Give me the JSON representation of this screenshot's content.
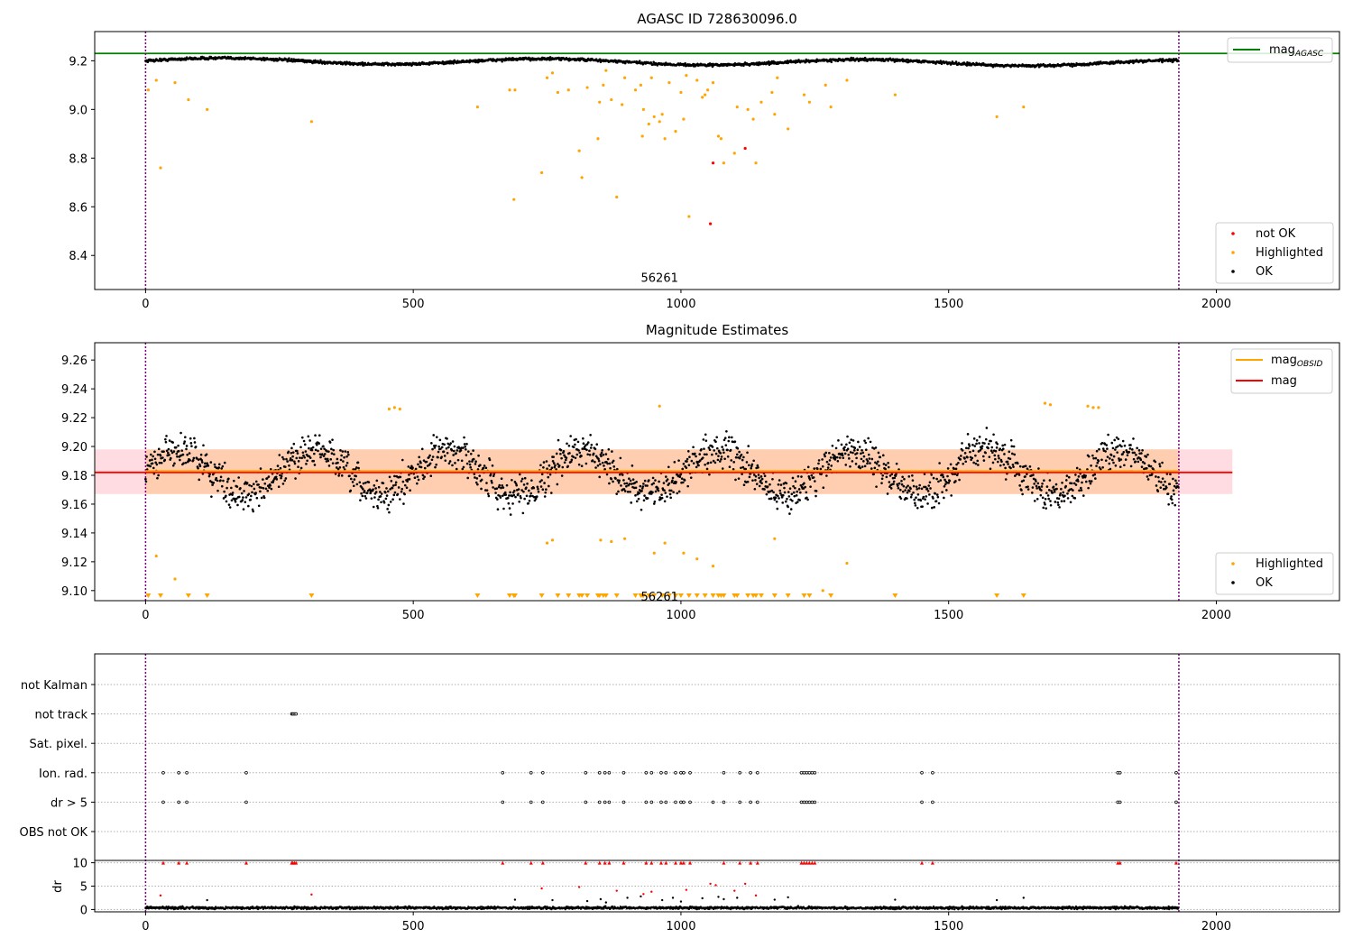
{
  "chart_data": [
    {
      "type": "scatter",
      "title": "AGASC ID 728630096.0",
      "xlim": [
        -95,
        2230
      ],
      "ylim": [
        8.26,
        9.32
      ],
      "xticks": [
        "0",
        "500",
        "1000",
        "1500",
        "2000"
      ],
      "yticks": [
        "8.4",
        "8.6",
        "8.8",
        "9.0",
        "9.2"
      ],
      "mag_agasc": 9.23,
      "vlines": [
        0,
        1930
      ],
      "annotation": {
        "text": "56261",
        "x": 960,
        "y": 8.31
      },
      "baseline": {
        "start": 9.2,
        "end": 9.19,
        "amplitude": 0.012,
        "noise": 0.009,
        "n": 1930
      },
      "legends": {
        "line": [
          {
            "label_main": "mag",
            "label_sub": "AGASC",
            "color": "#008000"
          }
        ],
        "markers": [
          {
            "label": "not OK",
            "color": "#ff0000"
          },
          {
            "label": "Highlighted",
            "color": "#ffa500"
          },
          {
            "label": "OK",
            "color": "#000000"
          }
        ]
      },
      "series": [
        {
          "name": "Highlighted",
          "color": "#ffa500",
          "points": [
            [
              5,
              9.08
            ],
            [
              20,
              9.12
            ],
            [
              28,
              8.76
            ],
            [
              55,
              9.11
            ],
            [
              80,
              9.04
            ],
            [
              115,
              9.0
            ],
            [
              310,
              8.95
            ],
            [
              620,
              9.01
            ],
            [
              680,
              9.08
            ],
            [
              688,
              8.63
            ],
            [
              690,
              9.08
            ],
            [
              740,
              8.74
            ],
            [
              750,
              9.13
            ],
            [
              760,
              9.15
            ],
            [
              770,
              9.07
            ],
            [
              790,
              9.08
            ],
            [
              810,
              8.83
            ],
            [
              815,
              8.72
            ],
            [
              825,
              9.09
            ],
            [
              845,
              8.88
            ],
            [
              848,
              9.03
            ],
            [
              855,
              9.1
            ],
            [
              860,
              9.16
            ],
            [
              870,
              9.04
            ],
            [
              880,
              8.64
            ],
            [
              890,
              9.02
            ],
            [
              895,
              9.13
            ],
            [
              915,
              9.08
            ],
            [
              925,
              9.1
            ],
            [
              928,
              8.89
            ],
            [
              930,
              9.0
            ],
            [
              940,
              8.94
            ],
            [
              945,
              9.13
            ],
            [
              950,
              8.97
            ],
            [
              960,
              8.95
            ],
            [
              965,
              8.98
            ],
            [
              970,
              8.88
            ],
            [
              978,
              9.11
            ],
            [
              990,
              8.91
            ],
            [
              1000,
              9.07
            ],
            [
              1005,
              8.96
            ],
            [
              1010,
              9.14
            ],
            [
              1015,
              8.56
            ],
            [
              1030,
              9.12
            ],
            [
              1040,
              9.05
            ],
            [
              1045,
              9.06
            ],
            [
              1050,
              9.08
            ],
            [
              1060,
              9.11
            ],
            [
              1070,
              8.89
            ],
            [
              1075,
              8.88
            ],
            [
              1080,
              8.78
            ],
            [
              1100,
              8.82
            ],
            [
              1105,
              9.01
            ],
            [
              1125,
              9.0
            ],
            [
              1135,
              8.96
            ],
            [
              1140,
              8.78
            ],
            [
              1150,
              9.03
            ],
            [
              1170,
              9.07
            ],
            [
              1175,
              8.98
            ],
            [
              1180,
              9.13
            ],
            [
              1200,
              8.92
            ],
            [
              1230,
              9.06
            ],
            [
              1240,
              9.03
            ],
            [
              1270,
              9.1
            ],
            [
              1280,
              9.01
            ],
            [
              1310,
              9.12
            ],
            [
              1400,
              9.06
            ],
            [
              1590,
              8.97
            ],
            [
              1640,
              9.01
            ]
          ]
        },
        {
          "name": "not OK",
          "color": "#ff0000",
          "points": [
            [
              1060,
              8.78
            ],
            [
              1055,
              8.53
            ],
            [
              1120,
              8.84
            ]
          ]
        }
      ]
    },
    {
      "type": "scatter",
      "title": "Magnitude Estimates",
      "xlim": [
        -95,
        2230
      ],
      "ylim": [
        9.093,
        9.272
      ],
      "xticks": [
        "0",
        "500",
        "1000",
        "1500",
        "2000"
      ],
      "yticks": [
        "9.10",
        "9.12",
        "9.14",
        "9.16",
        "9.18",
        "9.20",
        "9.22",
        "9.24",
        "9.26"
      ],
      "mag": 9.182,
      "mag_band": [
        9.167,
        9.198
      ],
      "mag_band_xrange": [
        -95,
        2030
      ],
      "mag_obsid": 9.183,
      "mag_obsid_band_xrange": [
        0,
        1930
      ],
      "vlines": [
        0,
        1930
      ],
      "annotation": {
        "text": "56261",
        "x": 960,
        "y": 9.096
      },
      "baseline": {
        "mean": 9.182,
        "amplitude": 0.017,
        "noise": 0.012,
        "n": 1930
      },
      "legends": {
        "line": [
          {
            "label_main": "mag",
            "label_sub": "OBSID",
            "color": "#ffa500"
          },
          {
            "label_main": "mag",
            "label_sub": "",
            "color": "#ff0000"
          }
        ],
        "markers": [
          {
            "label": "Highlighted",
            "color": "#ffa500"
          },
          {
            "label": "OK",
            "color": "#000000"
          }
        ]
      },
      "series": [
        {
          "name": "Highlighted",
          "color": "#ffa500",
          "points": [
            [
              20,
              9.124
            ],
            [
              55,
              9.108
            ],
            [
              455,
              9.226
            ],
            [
              465,
              9.227
            ],
            [
              475,
              9.226
            ],
            [
              750,
              9.133
            ],
            [
              760,
              9.135
            ],
            [
              850,
              9.135
            ],
            [
              870,
              9.134
            ],
            [
              895,
              9.136
            ],
            [
              950,
              9.126
            ],
            [
              960,
              9.228
            ],
            [
              970,
              9.133
            ],
            [
              1005,
              9.126
            ],
            [
              1030,
              9.122
            ],
            [
              1060,
              9.117
            ],
            [
              1175,
              9.136
            ],
            [
              1265,
              9.1
            ],
            [
              1310,
              9.119
            ],
            [
              1680,
              9.23
            ],
            [
              1690,
              9.229
            ],
            [
              1760,
              9.228
            ],
            [
              1770,
              9.227
            ],
            [
              1780,
              9.227
            ]
          ]
        },
        {
          "name": "Highlighted-offscale",
          "color": "#ffa500",
          "x_values": [
            5,
            28,
            80,
            115,
            310,
            620,
            680,
            688,
            690,
            740,
            770,
            790,
            810,
            815,
            825,
            845,
            848,
            855,
            860,
            880,
            915,
            925,
            928,
            930,
            940,
            950,
            965,
            978,
            990,
            1000,
            1015,
            1030,
            1045,
            1060,
            1070,
            1075,
            1080,
            1100,
            1105,
            1125,
            1135,
            1140,
            1150,
            1175,
            1200,
            1230,
            1240,
            1280,
            1400,
            1590,
            1640
          ]
        }
      ]
    },
    {
      "type": "scatter",
      "title": "",
      "xlim": [
        -95,
        2230
      ],
      "xticks": [
        "0",
        "500",
        "1000",
        "1500",
        "2000"
      ],
      "flag_labels": [
        "not Kalman",
        "not track",
        "Sat. pixel.",
        "Ion. rad.",
        "dr > 5",
        "OBS not OK"
      ],
      "flags": {
        "not Kalman": [],
        "not track": [
          273,
          275,
          278,
          281
        ],
        "Sat. pixel.": [],
        "Ion. rad.": [
          33,
          62,
          77,
          188,
          667,
          720,
          742,
          822,
          848,
          858,
          866,
          893,
          935,
          945,
          963,
          972,
          990,
          1000,
          1005,
          1017,
          1080,
          1110,
          1130,
          1143,
          1225,
          1230,
          1235,
          1240,
          1245,
          1250,
          1450,
          1470,
          1816,
          1820,
          1925
        ],
        "dr > 5": [
          33,
          62,
          77,
          188,
          667,
          720,
          742,
          822,
          848,
          858,
          866,
          893,
          935,
          945,
          963,
          972,
          990,
          1000,
          1005,
          1017,
          1060,
          1080,
          1110,
          1130,
          1143,
          1225,
          1230,
          1235,
          1240,
          1245,
          1250,
          1450,
          1470,
          1816,
          1820,
          1925
        ],
        "OBS not OK": []
      },
      "dr": {
        "ylabel": "dr",
        "ylim": [
          -0.5,
          10.5
        ],
        "yticks": [
          "0",
          "5",
          "10"
        ],
        "clip_value": 10,
        "baseline": {
          "mean": 0.35,
          "noise": 0.25,
          "n": 1930
        },
        "clipped_x": [
          33,
          62,
          77,
          188,
          273,
          275,
          278,
          281,
          667,
          720,
          742,
          822,
          848,
          858,
          866,
          893,
          935,
          945,
          963,
          972,
          990,
          1000,
          1005,
          1017,
          1080,
          1110,
          1130,
          1143,
          1225,
          1230,
          1235,
          1240,
          1245,
          1250,
          1450,
          1470,
          1816,
          1820,
          1925
        ],
        "red_points": [
          [
            28,
            3.0
          ],
          [
            310,
            3.2
          ],
          [
            740,
            4.5
          ],
          [
            810,
            4.8
          ],
          [
            880,
            4.0
          ],
          [
            930,
            3.3
          ],
          [
            945,
            3.8
          ],
          [
            1010,
            4.2
          ],
          [
            1055,
            5.5
          ],
          [
            1065,
            5.2
          ],
          [
            1100,
            4.0
          ],
          [
            1120,
            5.5
          ],
          [
            1140,
            3.0
          ]
        ],
        "black_points": [
          [
            115,
            2.0
          ],
          [
            690,
            2.1
          ],
          [
            760,
            2.0
          ],
          [
            825,
            1.8
          ],
          [
            850,
            2.2
          ],
          [
            860,
            1.5
          ],
          [
            900,
            2.5
          ],
          [
            925,
            2.8
          ],
          [
            965,
            2.0
          ],
          [
            985,
            2.5
          ],
          [
            1000,
            1.7
          ],
          [
            1040,
            2.4
          ],
          [
            1070,
            2.7
          ],
          [
            1080,
            2.2
          ],
          [
            1105,
            2.5
          ],
          [
            1175,
            2.1
          ],
          [
            1200,
            2.6
          ],
          [
            1400,
            2.1
          ],
          [
            1590,
            2.0
          ],
          [
            1640,
            2.5
          ]
        ]
      }
    }
  ]
}
